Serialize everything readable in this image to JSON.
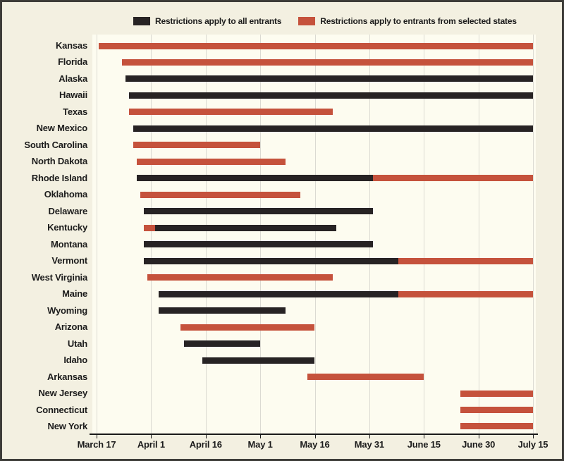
{
  "colors": {
    "background": "#f3f0e1",
    "plot_background": "#fdfcf0",
    "bar_all_entrants": "#272324",
    "bar_selected_states": "#c5523c",
    "gridline": "#dbdad2",
    "axis_line": "#191919",
    "text": "#1c1c1c",
    "frame_border": "#3d3c38"
  },
  "chart_data": {
    "type": "gantt",
    "title": "",
    "time_unit": "days after March 17, 2020",
    "legend": [
      {
        "category": "all_entrants",
        "label": "Restrictions apply to all entrants",
        "color": "#272324"
      },
      {
        "category": "selected_states",
        "label": "Restrictions apply to entrants from selected states",
        "color": "#c5523c"
      }
    ],
    "x_axis": {
      "tick_interval_days": 15,
      "range_days": [
        0,
        120
      ],
      "ticks": [
        {
          "label": "March 17",
          "day": 0
        },
        {
          "label": "April 1",
          "day": 15
        },
        {
          "label": "April 16",
          "day": 30
        },
        {
          "label": "May 1",
          "day": 45
        },
        {
          "label": "May 16",
          "day": 60
        },
        {
          "label": "May 31",
          "day": 75
        },
        {
          "label": "June 15",
          "day": 90
        },
        {
          "label": "June 30",
          "day": 105
        },
        {
          "label": "July 15",
          "day": 120
        }
      ]
    },
    "rows": [
      {
        "state": "Kansas",
        "segments": [
          {
            "category": "selected_states",
            "start": 0.5,
            "end": 120,
            "start_date": "March 17",
            "end_date": "July 15"
          }
        ]
      },
      {
        "state": "Florida",
        "segments": [
          {
            "category": "selected_states",
            "start": 7,
            "end": 120,
            "start_date": "March 24",
            "end_date": "July 15"
          }
        ]
      },
      {
        "state": "Alaska",
        "segments": [
          {
            "category": "all_entrants",
            "start": 8,
            "end": 120,
            "start_date": "March 25",
            "end_date": "July 15"
          }
        ]
      },
      {
        "state": "Hawaii",
        "segments": [
          {
            "category": "all_entrants",
            "start": 9,
            "end": 120,
            "start_date": "March 26",
            "end_date": "July 15"
          }
        ]
      },
      {
        "state": "Texas",
        "segments": [
          {
            "category": "selected_states",
            "start": 9,
            "end": 65,
            "start_date": "March 26",
            "end_date": "May 21"
          }
        ]
      },
      {
        "state": "New Mexico",
        "segments": [
          {
            "category": "all_entrants",
            "start": 10,
            "end": 120,
            "start_date": "March 27",
            "end_date": "July 15"
          }
        ]
      },
      {
        "state": "South Carolina",
        "segments": [
          {
            "category": "selected_states",
            "start": 10,
            "end": 45,
            "start_date": "March 27",
            "end_date": "May 1"
          }
        ]
      },
      {
        "state": "North Dakota",
        "segments": [
          {
            "category": "selected_states",
            "start": 11,
            "end": 52,
            "start_date": "March 28",
            "end_date": "May 8"
          }
        ]
      },
      {
        "state": "Rhode Island",
        "segments": [
          {
            "category": "all_entrants",
            "start": 11,
            "end": 76,
            "start_date": "March 28",
            "end_date": "June 1"
          },
          {
            "category": "selected_states",
            "start": 76,
            "end": 120,
            "start_date": "June 1",
            "end_date": "July 15"
          }
        ]
      },
      {
        "state": "Oklahoma",
        "segments": [
          {
            "category": "selected_states",
            "start": 12,
            "end": 56,
            "start_date": "March 29",
            "end_date": "May 12"
          }
        ]
      },
      {
        "state": "Delaware",
        "segments": [
          {
            "category": "all_entrants",
            "start": 13,
            "end": 76,
            "start_date": "March 30",
            "end_date": "June 1"
          }
        ]
      },
      {
        "state": "Kentucky",
        "segments": [
          {
            "category": "selected_states",
            "start": 13,
            "end": 16,
            "start_date": "March 30",
            "end_date": "April 2"
          },
          {
            "category": "all_entrants",
            "start": 16,
            "end": 66,
            "start_date": "April 2",
            "end_date": "May 22"
          }
        ]
      },
      {
        "state": "Montana",
        "segments": [
          {
            "category": "all_entrants",
            "start": 13,
            "end": 76,
            "start_date": "March 30",
            "end_date": "June 1"
          }
        ]
      },
      {
        "state": "Vermont",
        "segments": [
          {
            "category": "all_entrants",
            "start": 13,
            "end": 83,
            "start_date": "March 30",
            "end_date": "June 8"
          },
          {
            "category": "selected_states",
            "start": 83,
            "end": 120,
            "start_date": "June 8",
            "end_date": "July 15"
          }
        ]
      },
      {
        "state": "West Virginia",
        "segments": [
          {
            "category": "selected_states",
            "start": 14,
            "end": 65,
            "start_date": "March 31",
            "end_date": "May 21"
          }
        ]
      },
      {
        "state": "Maine",
        "segments": [
          {
            "category": "all_entrants",
            "start": 17,
            "end": 83,
            "start_date": "April 3",
            "end_date": "June 8"
          },
          {
            "category": "selected_states",
            "start": 83,
            "end": 120,
            "start_date": "June 8",
            "end_date": "July 15"
          }
        ]
      },
      {
        "state": "Wyoming",
        "segments": [
          {
            "category": "all_entrants",
            "start": 17,
            "end": 52,
            "start_date": "April 3",
            "end_date": "May 8"
          }
        ]
      },
      {
        "state": "Arizona",
        "segments": [
          {
            "category": "selected_states",
            "start": 23,
            "end": 60,
            "start_date": "April 9",
            "end_date": "May 16"
          }
        ]
      },
      {
        "state": "Utah",
        "segments": [
          {
            "category": "all_entrants",
            "start": 24,
            "end": 45,
            "start_date": "April 10",
            "end_date": "May 1"
          }
        ]
      },
      {
        "state": "Idaho",
        "segments": [
          {
            "category": "all_entrants",
            "start": 29,
            "end": 60,
            "start_date": "April 15",
            "end_date": "May 16"
          }
        ]
      },
      {
        "state": "Arkansas",
        "segments": [
          {
            "category": "selected_states",
            "start": 58,
            "end": 90,
            "start_date": "May 14",
            "end_date": "June 15"
          }
        ]
      },
      {
        "state": "New Jersey",
        "segments": [
          {
            "category": "selected_states",
            "start": 100,
            "end": 120,
            "start_date": "June 25",
            "end_date": "July 15"
          }
        ]
      },
      {
        "state": "Connecticut",
        "segments": [
          {
            "category": "selected_states",
            "start": 100,
            "end": 120,
            "start_date": "June 25",
            "end_date": "July 15"
          }
        ]
      },
      {
        "state": "New York",
        "segments": [
          {
            "category": "selected_states",
            "start": 100,
            "end": 120,
            "start_date": "June 25",
            "end_date": "July 15"
          }
        ]
      }
    ]
  }
}
